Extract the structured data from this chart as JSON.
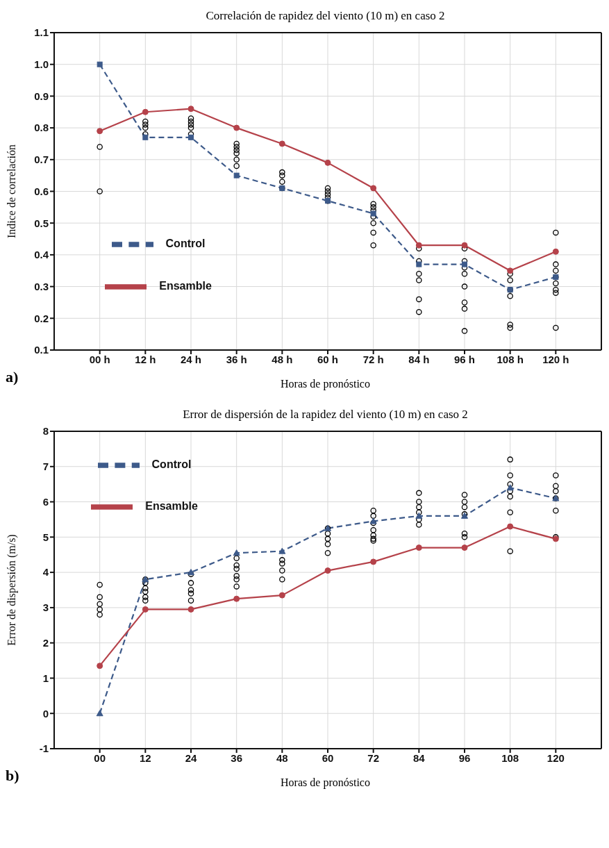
{
  "chart_data": [
    {
      "type": "line",
      "title": "Correlación de rapidez del viento (10 m) en caso 2",
      "xlabel": "Horas de pronóstico",
      "ylabel": "Indice de correlación",
      "annotations": [
        "a)"
      ],
      "categories": [
        "00 h",
        "12 h",
        "24 h",
        "36 h",
        "48 h",
        "60 h",
        "72 h",
        "84 h",
        "96 h",
        "108 h",
        "120 h"
      ],
      "ylim": [
        0.1,
        1.1
      ],
      "yticks": [
        0.1,
        0.2,
        0.3,
        0.4,
        0.5,
        0.6,
        0.7,
        0.8,
        0.9,
        {
          "value": 1,
          "label": "1.0"
        },
        1.1
      ],
      "grid": true,
      "legend": "left",
      "series": [
        {
          "name": "Control",
          "color": "#3d5a8a",
          "line_style": "dashed",
          "marker": "square",
          "values": [
            1.0,
            0.77,
            0.77,
            0.65,
            0.61,
            0.57,
            0.53,
            0.37,
            0.37,
            0.29,
            0.33
          ]
        },
        {
          "name": "Ensamble",
          "color": "#b5424a",
          "line_style": "solid",
          "marker": "circle",
          "values": [
            0.79,
            0.85,
            0.86,
            0.8,
            0.75,
            0.69,
            0.61,
            0.43,
            0.43,
            0.35,
            0.41
          ]
        },
        {
          "type": "scatter",
          "color": "#000000",
          "marker": "circle",
          "x": [
            "00 h",
            "00 h",
            "12 h",
            "12 h",
            "12 h",
            "12 h",
            "24 h",
            "24 h",
            "24 h",
            "24 h",
            "24 h",
            "36 h",
            "36 h",
            "36 h",
            "36 h",
            "36 h",
            "36 h",
            "48 h",
            "48 h",
            "48 h",
            "48 h",
            "60 h",
            "60 h",
            "60 h",
            "60 h",
            "60 h",
            "72 h",
            "72 h",
            "72 h",
            "72 h",
            "72 h",
            "72 h",
            "72 h",
            "84 h",
            "84 h",
            "84 h",
            "84 h",
            "84 h",
            "84 h",
            "96 h",
            "96 h",
            "96 h",
            "96 h",
            "96 h",
            "96 h",
            "96 h",
            "96 h",
            "108 h",
            "108 h",
            "108 h",
            "108 h",
            "108 h",
            "108 h",
            "120 h",
            "120 h",
            "120 h",
            "120 h",
            "120 h",
            "120 h",
            "120 h",
            "120 h"
          ],
          "values": [
            0.74,
            0.6,
            0.82,
            0.81,
            0.8,
            0.78,
            0.83,
            0.82,
            0.81,
            0.8,
            0.78,
            0.75,
            0.74,
            0.73,
            0.72,
            0.7,
            0.68,
            0.66,
            0.65,
            0.63,
            0.61,
            0.61,
            0.6,
            0.59,
            0.58,
            0.57,
            0.56,
            0.55,
            0.54,
            0.52,
            0.5,
            0.47,
            0.43,
            0.42,
            0.38,
            0.34,
            0.32,
            0.26,
            0.22,
            0.42,
            0.38,
            0.36,
            0.34,
            0.3,
            0.25,
            0.23,
            0.16,
            0.34,
            0.32,
            0.29,
            0.27,
            0.18,
            0.17,
            0.47,
            0.37,
            0.35,
            0.33,
            0.31,
            0.29,
            0.28,
            0.17
          ]
        }
      ]
    },
    {
      "type": "line",
      "title": "Error de dispersión de la rapidez del viento (10 m) en caso 2",
      "xlabel": "Horas de pronóstico",
      "ylabel": "Error de dispersión (m/s)",
      "annotations": [
        "b)"
      ],
      "categories": [
        "00",
        "12",
        "24",
        "36",
        "48",
        "60",
        "72",
        "84",
        "96",
        "108",
        "120"
      ],
      "ylim": [
        -1,
        8
      ],
      "yticks": [
        -1,
        0,
        1,
        2,
        3,
        4,
        5,
        6,
        7,
        8
      ],
      "grid": true,
      "legend": "top left",
      "series": [
        {
          "name": "Control",
          "color": "#3d5a8a",
          "line_style": "dashed",
          "marker": "triangle",
          "values": [
            0,
            3.8,
            4.0,
            4.55,
            4.6,
            5.25,
            5.45,
            5.6,
            5.6,
            6.4,
            6.1
          ]
        },
        {
          "name": "Ensamble",
          "color": "#b5424a",
          "line_style": "solid",
          "marker": "circle",
          "values": [
            1.35,
            2.95,
            2.95,
            3.25,
            3.35,
            4.05,
            4.3,
            4.7,
            4.7,
            5.3,
            4.95
          ]
        },
        {
          "type": "scatter",
          "color": "#000000",
          "marker": "circle",
          "x": [
            "00",
            "00",
            "00",
            "00",
            "00",
            "12",
            "12",
            "12",
            "12",
            "12",
            "12",
            "24",
            "24",
            "24",
            "24",
            "24",
            "36",
            "36",
            "36",
            "36",
            "36",
            "36",
            "48",
            "48",
            "48",
            "48",
            "60",
            "60",
            "60",
            "60",
            "60",
            "72",
            "72",
            "72",
            "72",
            "72",
            "72",
            "72",
            "84",
            "84",
            "84",
            "84",
            "84",
            "84",
            "96",
            "96",
            "96",
            "96",
            "96",
            "96",
            "108",
            "108",
            "108",
            "108",
            "108",
            "108",
            "108",
            "120",
            "120",
            "120",
            "120",
            "120",
            "120"
          ],
          "values": [
            3.65,
            3.3,
            3.1,
            2.95,
            2.8,
            3.8,
            3.7,
            3.55,
            3.45,
            3.3,
            3.2,
            3.95,
            3.7,
            3.5,
            3.4,
            3.2,
            4.4,
            4.2,
            4.1,
            3.9,
            3.8,
            3.6,
            4.35,
            4.25,
            4.05,
            3.8,
            5.25,
            5.1,
            4.95,
            4.8,
            4.55,
            5.75,
            5.6,
            5.4,
            5.2,
            5.05,
            4.95,
            4.9,
            6.25,
            6.0,
            5.85,
            5.7,
            5.5,
            5.35,
            6.2,
            6.0,
            5.85,
            5.65,
            5.1,
            5.0,
            7.2,
            6.75,
            6.5,
            6.3,
            6.15,
            5.7,
            4.6,
            6.75,
            6.45,
            6.3,
            6.1,
            5.75,
            5.0
          ]
        }
      ]
    }
  ]
}
